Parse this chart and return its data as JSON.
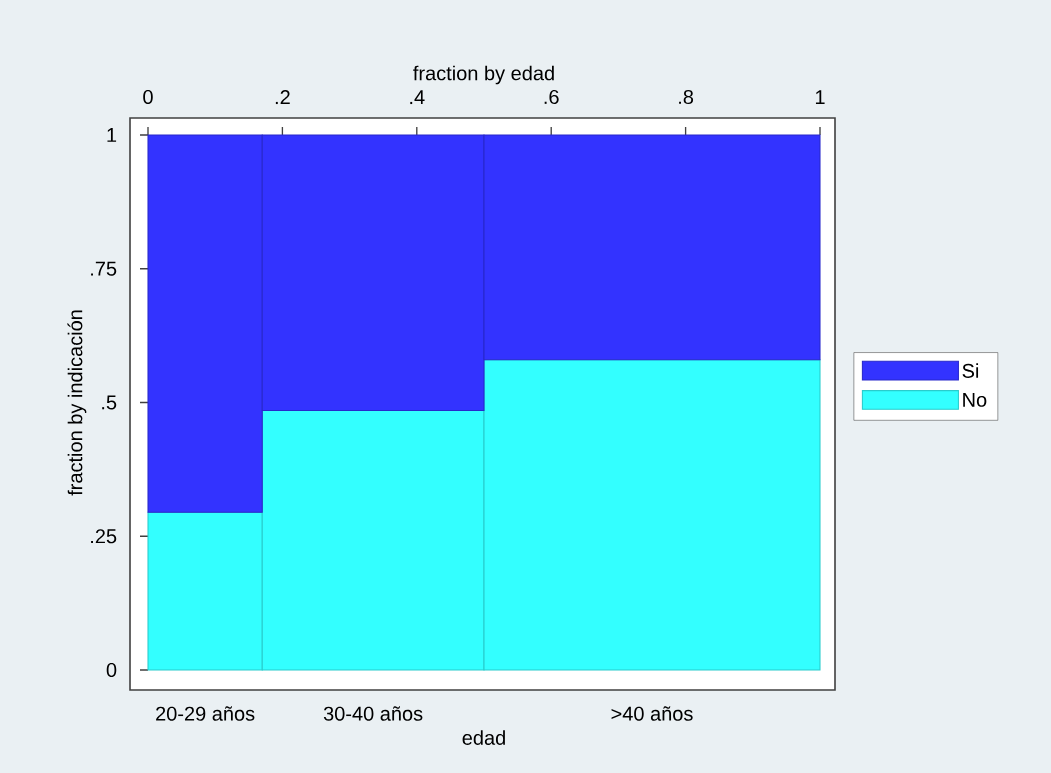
{
  "chart_data": {
    "type": "bar",
    "stacked": true,
    "xlabel": "fraction by edad",
    "ylabel": "fraction by indicación",
    "x": [
      0.085,
      0.335,
      0.75
    ],
    "series": [
      {
        "name": "No",
        "color": "#33ffff",
        "values": [
          0.295,
          0.485,
          0.58
        ]
      },
      {
        "name": "Si",
        "color": "#3333ff",
        "values": [
          0.705,
          0.515,
          0.42
        ]
      }
    ],
    "annotations": [
      "20-29 años",
      "30-40 años",
      ">40 años",
      "edad"
    ],
    "xlim": [
      0,
      1
    ],
    "xticks": [
      0,
      {
        "value": 0.2,
        "label": ".2"
      },
      {
        "value": 0.4,
        "label": ".4"
      },
      {
        "value": 0.6,
        "label": ".6"
      },
      {
        "value": 0.8,
        "label": ".8"
      },
      1
    ],
    "ylim": [
      0,
      1
    ],
    "yticks": [
      0,
      {
        "value": 0.25,
        "label": ".25"
      },
      {
        "value": 0.5,
        "label": ".5"
      },
      {
        "value": 0.75,
        "label": ".75"
      },
      1
    ],
    "legend": "right",
    "grid": false
  }
}
